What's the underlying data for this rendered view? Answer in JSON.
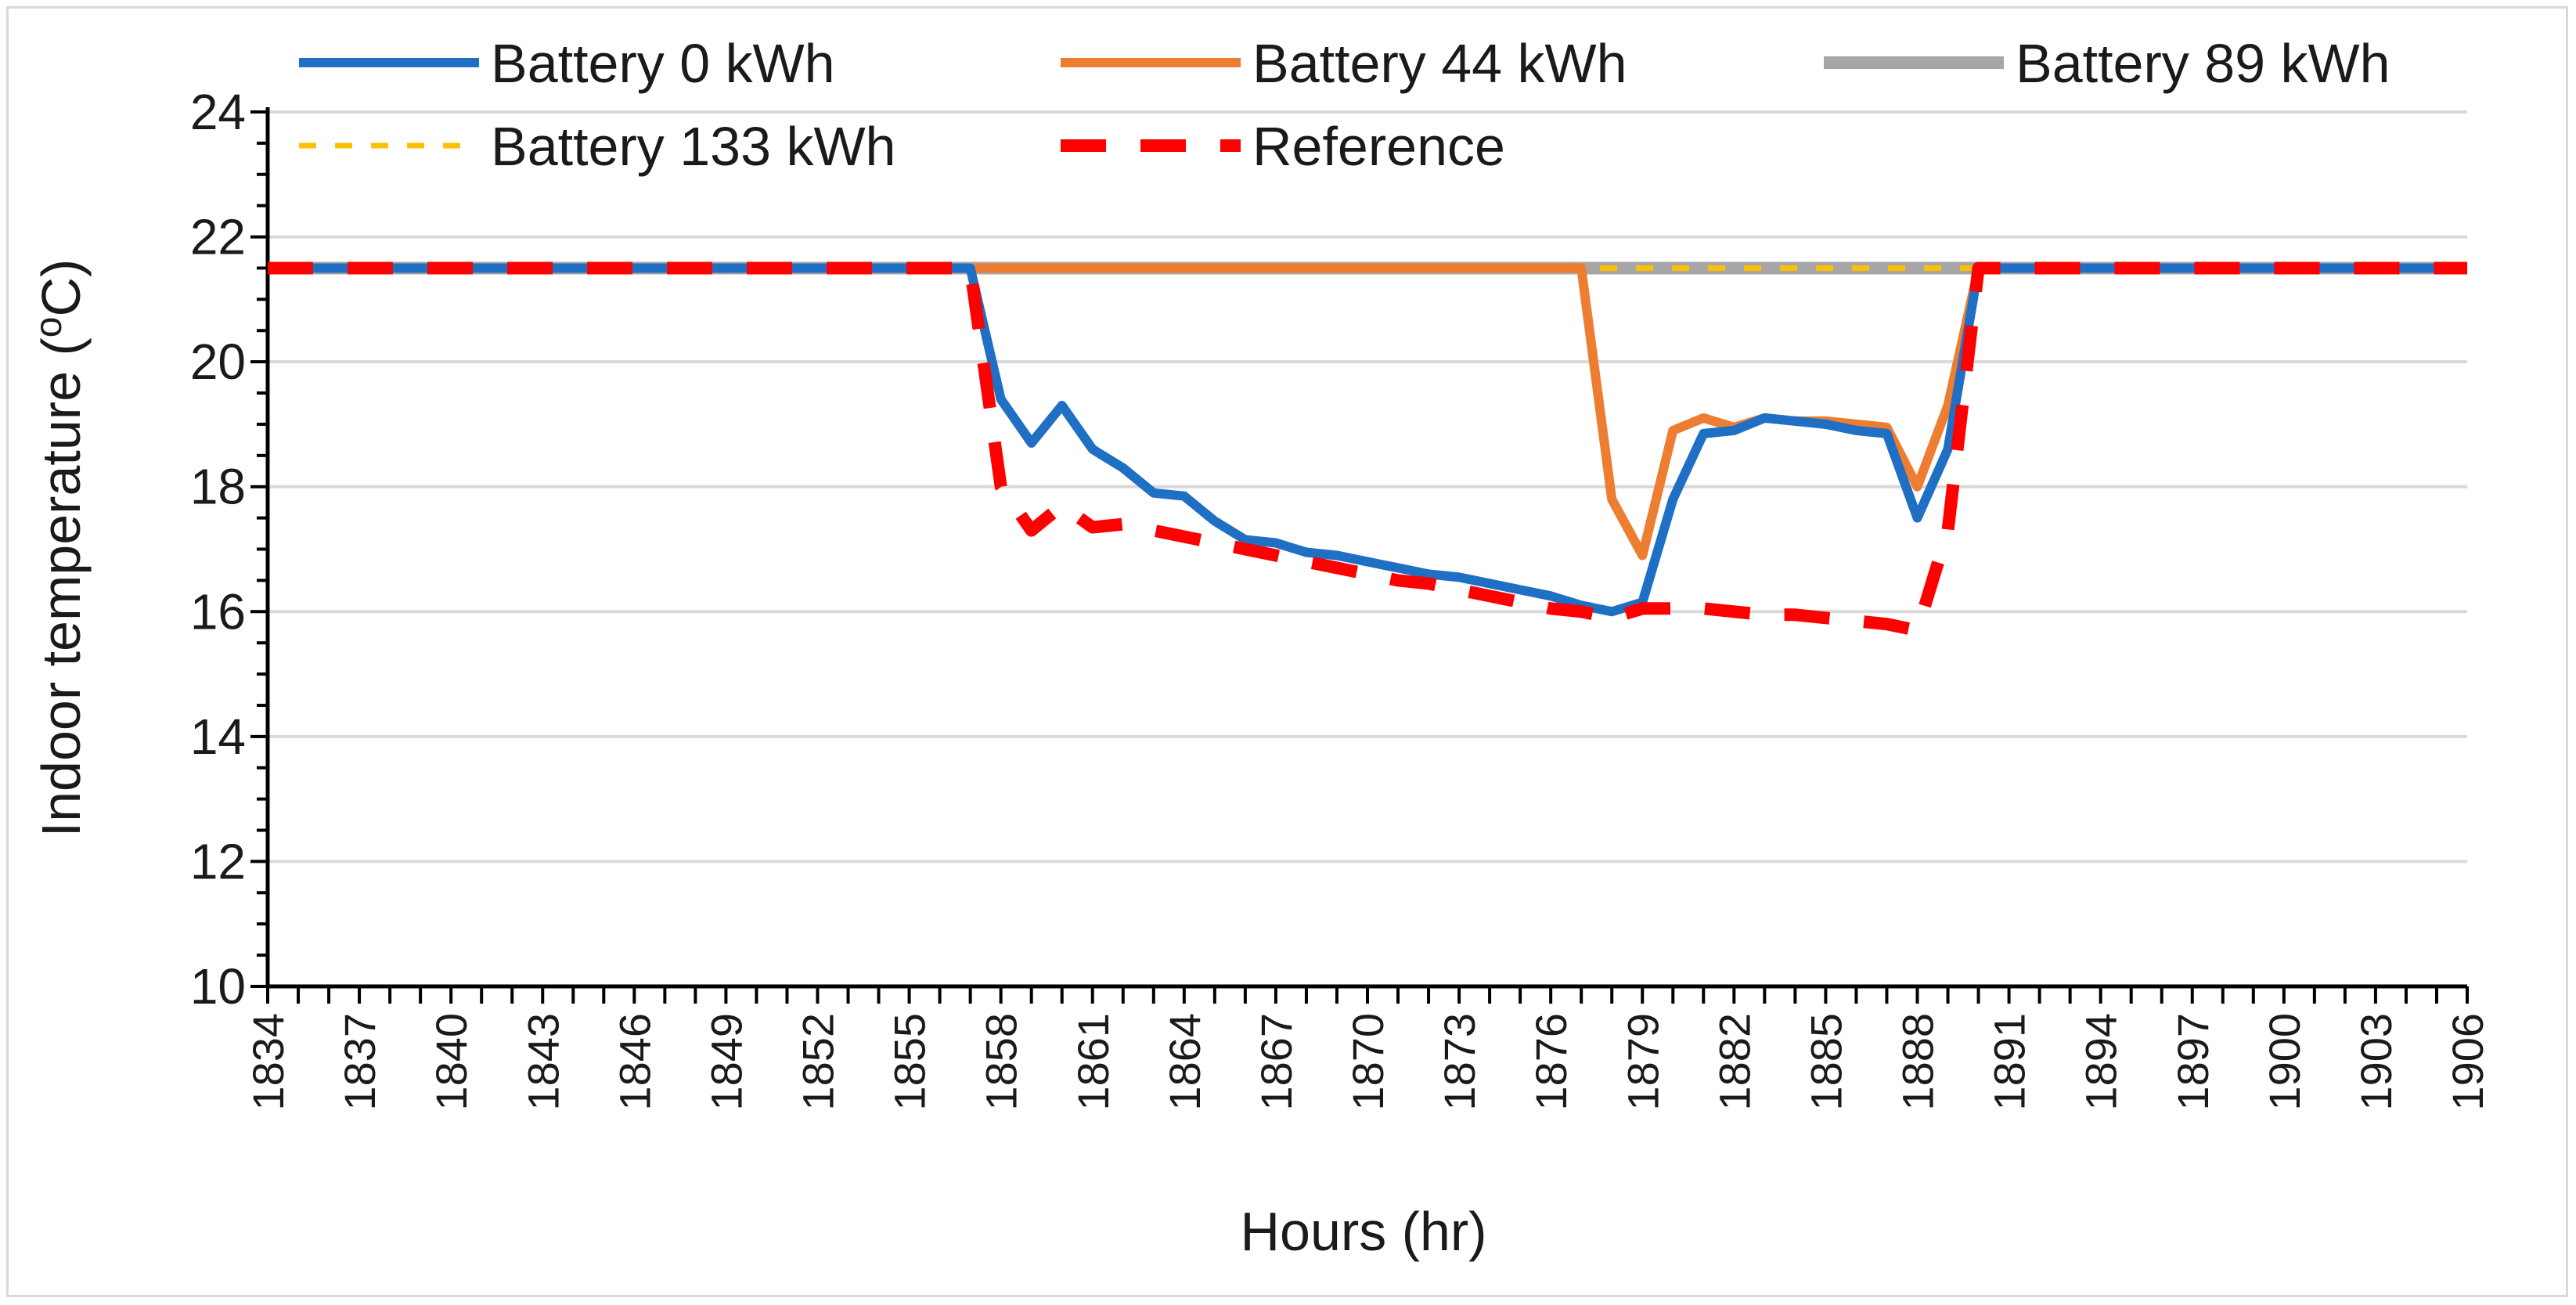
{
  "chart_data": {
    "type": "line",
    "title": "",
    "xlabel": "Hours (hr)",
    "ylabel": "Indoor temperature (oC)",
    "ylabel_main": "Indoor temperature (",
    "ylabel_sup": "o",
    "ylabel_tail": "C)",
    "ylim": [
      10,
      24
    ],
    "yticks": [
      10,
      12,
      14,
      16,
      18,
      20,
      22,
      24
    ],
    "xlim": [
      1834,
      1906
    ],
    "xticks": [
      1834,
      1837,
      1840,
      1843,
      1846,
      1849,
      1852,
      1855,
      1858,
      1861,
      1864,
      1867,
      1870,
      1873,
      1876,
      1879,
      1882,
      1885,
      1888,
      1891,
      1894,
      1897,
      1900,
      1903,
      1906
    ],
    "grid": true,
    "legend_position": "top",
    "series": [
      {
        "name": "Battery 0 kWh",
        "color": "#1f6fc4",
        "style": "solid",
        "points": [
          [
            1834,
            21.5
          ],
          [
            1857,
            21.5
          ],
          [
            1858,
            19.4
          ],
          [
            1859,
            18.7
          ],
          [
            1860,
            19.3
          ],
          [
            1861,
            18.6
          ],
          [
            1862,
            18.3
          ],
          [
            1863,
            17.9
          ],
          [
            1864,
            17.85
          ],
          [
            1865,
            17.45
          ],
          [
            1866,
            17.15
          ],
          [
            1867,
            17.1
          ],
          [
            1868,
            16.95
          ],
          [
            1869,
            16.9
          ],
          [
            1870,
            16.8
          ],
          [
            1871,
            16.7
          ],
          [
            1872,
            16.6
          ],
          [
            1873,
            16.55
          ],
          [
            1874,
            16.45
          ],
          [
            1875,
            16.35
          ],
          [
            1876,
            16.25
          ],
          [
            1877,
            16.1
          ],
          [
            1878,
            16.0
          ],
          [
            1879,
            16.15
          ],
          [
            1880,
            17.8
          ],
          [
            1881,
            18.85
          ],
          [
            1882,
            18.9
          ],
          [
            1883,
            19.1
          ],
          [
            1884,
            19.05
          ],
          [
            1885,
            19.0
          ],
          [
            1886,
            18.9
          ],
          [
            1887,
            18.85
          ],
          [
            1888,
            17.5
          ],
          [
            1889,
            18.6
          ],
          [
            1890,
            21.5
          ],
          [
            1906,
            21.5
          ]
        ]
      },
      {
        "name": "Battery 44 kWh",
        "color": "#ed7d31",
        "style": "solid",
        "points": [
          [
            1834,
            21.5
          ],
          [
            1877,
            21.5
          ],
          [
            1878,
            17.8
          ],
          [
            1879,
            16.9
          ],
          [
            1880,
            18.9
          ],
          [
            1881,
            19.1
          ],
          [
            1882,
            18.95
          ],
          [
            1883,
            19.1
          ],
          [
            1884,
            19.05
          ],
          [
            1885,
            19.05
          ],
          [
            1886,
            19.0
          ],
          [
            1887,
            18.95
          ],
          [
            1888,
            18.0
          ],
          [
            1889,
            19.3
          ],
          [
            1890,
            21.5
          ],
          [
            1906,
            21.5
          ]
        ]
      },
      {
        "name": "Battery 89 kWh",
        "color": "#a6a6a6",
        "style": "solid",
        "points": [
          [
            1834,
            21.5
          ],
          [
            1906,
            21.5
          ]
        ]
      },
      {
        "name": "Battery 133 kWh",
        "color": "#ffc000",
        "style": "dashed",
        "points": [
          [
            1834,
            21.5
          ],
          [
            1906,
            21.5
          ]
        ]
      },
      {
        "name": "Reference",
        "color": "#ff0000",
        "style": "dashed",
        "points": [
          [
            1834,
            21.5
          ],
          [
            1857,
            21.5
          ],
          [
            1858,
            18.0
          ],
          [
            1859,
            17.3
          ],
          [
            1860,
            17.7
          ],
          [
            1861,
            17.35
          ],
          [
            1862,
            17.4
          ],
          [
            1863,
            17.3
          ],
          [
            1864,
            17.2
          ],
          [
            1865,
            17.1
          ],
          [
            1866,
            17.0
          ],
          [
            1867,
            16.9
          ],
          [
            1868,
            16.8
          ],
          [
            1869,
            16.7
          ],
          [
            1870,
            16.6
          ],
          [
            1871,
            16.5
          ],
          [
            1872,
            16.45
          ],
          [
            1873,
            16.35
          ],
          [
            1874,
            16.25
          ],
          [
            1875,
            16.15
          ],
          [
            1876,
            16.05
          ],
          [
            1877,
            16.0
          ],
          [
            1878,
            15.9
          ],
          [
            1879,
            16.05
          ],
          [
            1880,
            16.05
          ],
          [
            1881,
            16.05
          ],
          [
            1882,
            16.0
          ],
          [
            1883,
            15.95
          ],
          [
            1884,
            15.95
          ],
          [
            1885,
            15.9
          ],
          [
            1886,
            15.85
          ],
          [
            1887,
            15.8
          ],
          [
            1888,
            15.7
          ],
          [
            1889,
            17.3
          ],
          [
            1890,
            21.5
          ],
          [
            1906,
            21.5
          ]
        ]
      }
    ]
  }
}
